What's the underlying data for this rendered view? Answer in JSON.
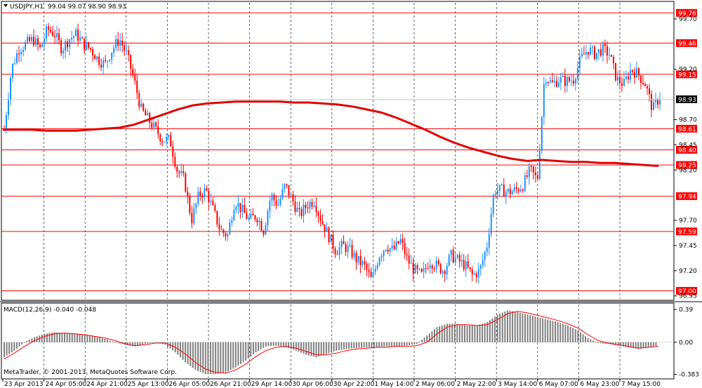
{
  "header": {
    "symbol_label": "USDJPY,H1",
    "ohlc_label": "99.04 99.07 98.90 98.93"
  },
  "macd": {
    "label": "MACD(12,26,9) -0.040 -0.048",
    "ticks": [
      "0.39",
      "0.00",
      "-0.383"
    ],
    "tick_values": [
      0.39,
      0.0,
      -0.383
    ]
  },
  "copyright": "MetaTrader, © 2001-2013, MetaQuotes Software Corp.",
  "current_price": "98.93",
  "colors": {
    "bull": "#1e90ff",
    "bear": "#ff0000",
    "level_line": "#ff0000",
    "ma_line": "#e00000",
    "hist": "#808080",
    "signal": "#ff0000",
    "grid": "#000000"
  },
  "chart_data": {
    "type": "line",
    "title": "USDJPY,H1",
    "price_axis_ticks": [
      "99.70",
      "99.20",
      "98.70",
      "98.45",
      "98.20",
      "97.70",
      "97.45",
      "97.20",
      "96.95"
    ],
    "price_axis_values": [
      99.7,
      99.2,
      98.7,
      98.45,
      98.2,
      97.7,
      97.45,
      97.2,
      96.95
    ],
    "ylim": [
      96.92,
      99.86
    ],
    "level_labels": [
      "99.76",
      "99.46",
      "99.15",
      "98.61",
      "98.40",
      "98.25",
      "97.94",
      "97.59",
      "97.00"
    ],
    "level_values": [
      99.76,
      99.46,
      99.15,
      98.61,
      98.4,
      98.25,
      97.94,
      97.59,
      97.0
    ],
    "time_labels": [
      "23 Apr 2013",
      "24 Apr 05:00",
      "24 Apr 21:00",
      "25 Apr 13:00",
      "26 Apr 05:00",
      "26 Apr 21:00",
      "29 Apr 14:00",
      "30 Apr 06:00",
      "30 Apr 22:00",
      "1 May 14:00",
      "2 May 06:00",
      "2 May 22:00",
      "3 May 14:00",
      "6 May 07:00",
      "6 May 23:00",
      "7 May 15:00"
    ],
    "close_series": [
      98.6,
      99.2,
      99.4,
      99.45,
      99.5,
      99.4,
      99.6,
      99.55,
      99.4,
      99.5,
      99.55,
      99.45,
      99.4,
      99.3,
      99.25,
      99.4,
      99.5,
      99.35,
      99.1,
      98.8,
      98.7,
      98.6,
      98.5,
      98.5,
      98.2,
      98.1,
      97.7,
      97.95,
      98.0,
      97.8,
      97.6,
      97.55,
      97.9,
      97.8,
      97.7,
      97.75,
      97.6,
      97.95,
      97.85,
      98.05,
      97.9,
      97.75,
      97.85,
      97.9,
      97.7,
      97.55,
      97.4,
      97.45,
      97.4,
      97.3,
      97.25,
      97.1,
      97.35,
      97.45,
      97.4,
      97.5,
      97.3,
      97.2,
      97.15,
      97.3,
      97.25,
      97.2,
      97.35,
      97.3,
      97.25,
      97.15,
      97.2,
      97.45,
      98.0,
      98.0,
      97.98,
      98.0,
      98.05,
      98.2,
      98.1,
      99.15,
      99.05,
      99.1,
      99.08,
      99.1,
      99.3,
      99.4,
      99.35,
      99.4,
      99.35,
      99.1,
      99.05,
      99.2,
      99.15,
      99.05,
      98.8,
      98.93
    ],
    "ma_series": [
      98.6,
      98.6,
      98.6,
      98.59,
      98.59,
      98.59,
      98.6,
      98.61,
      98.62,
      98.65,
      98.7,
      98.75,
      98.8,
      98.84,
      98.86,
      98.87,
      98.88,
      98.88,
      98.88,
      98.88,
      98.87,
      98.87,
      98.86,
      98.85,
      98.83,
      98.8,
      98.77,
      98.72,
      98.66,
      98.6,
      98.53,
      98.47,
      98.42,
      98.38,
      98.34,
      98.31,
      98.29,
      98.3,
      98.29,
      98.28,
      98.28,
      98.27,
      98.27,
      98.26,
      98.25,
      98.24
    ],
    "macd_hist": [
      -0.18,
      -0.1,
      0.0,
      0.06,
      0.1,
      0.12,
      0.11,
      0.1,
      0.09,
      0.07,
      0.04,
      0.0,
      -0.03,
      -0.05,
      -0.02,
      0.0,
      -0.03,
      -0.12,
      -0.24,
      -0.33,
      -0.38,
      -0.38,
      -0.36,
      -0.3,
      -0.22,
      -0.12,
      -0.05,
      -0.04,
      -0.06,
      -0.1,
      -0.15,
      -0.18,
      -0.14,
      -0.1,
      -0.08,
      -0.07,
      -0.06,
      -0.06,
      -0.05,
      -0.05,
      -0.04,
      -0.02,
      0.08,
      0.18,
      0.22,
      0.22,
      0.2,
      0.2,
      0.24,
      0.33,
      0.38,
      0.36,
      0.33,
      0.3,
      0.27,
      0.24,
      0.2,
      0.14,
      0.05,
      -0.01,
      -0.02,
      -0.04,
      -0.06,
      -0.08,
      -0.06,
      -0.04
    ],
    "macd_signal": [
      -0.2,
      -0.13,
      -0.05,
      0.02,
      0.07,
      0.1,
      0.11,
      0.1,
      0.09,
      0.07,
      0.05,
      0.02,
      -0.02,
      -0.04,
      -0.03,
      -0.01,
      -0.01,
      -0.06,
      -0.14,
      -0.24,
      -0.32,
      -0.36,
      -0.37,
      -0.33,
      -0.26,
      -0.17,
      -0.1,
      -0.06,
      -0.05,
      -0.07,
      -0.11,
      -0.15,
      -0.15,
      -0.13,
      -0.1,
      -0.08,
      -0.07,
      -0.06,
      -0.06,
      -0.05,
      -0.05,
      -0.04,
      0.0,
      0.1,
      0.18,
      0.21,
      0.21,
      0.2,
      0.21,
      0.27,
      0.34,
      0.37,
      0.35,
      0.32,
      0.29,
      0.26,
      0.22,
      0.17,
      0.09,
      0.02,
      -0.01,
      -0.03,
      -0.05,
      -0.07,
      -0.06,
      -0.05
    ]
  }
}
